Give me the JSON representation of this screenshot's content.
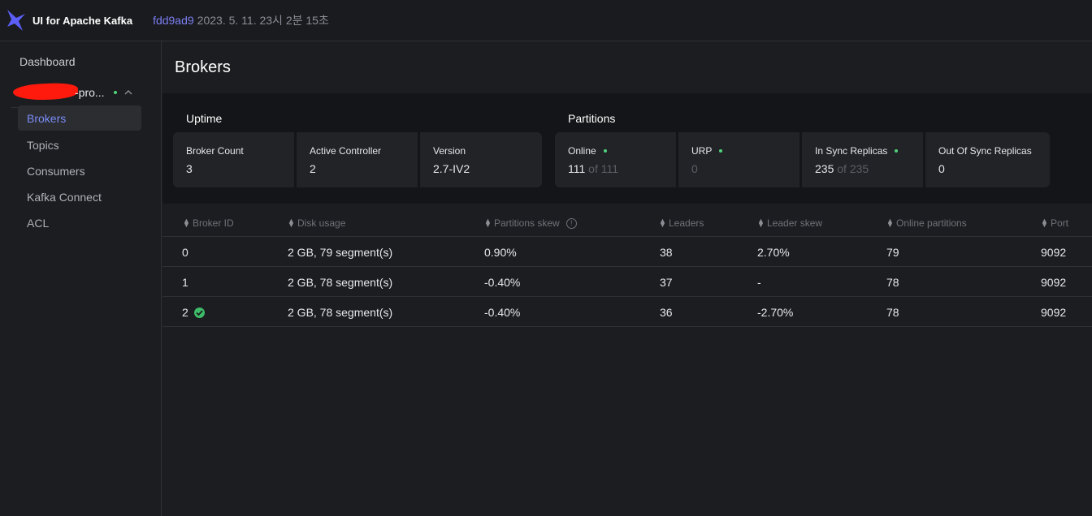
{
  "app": {
    "title": "UI for Apache Kafka",
    "commit": "fdd9ad9",
    "build_date": "2023. 5. 11. 23시 2분 15초",
    "accent_color": "#7b7ff3",
    "logo_color": "#5b5ef7"
  },
  "sidebar": {
    "dashboard": "Dashboard",
    "cluster": {
      "name_visible": "-pro...",
      "status": "online",
      "expanded": true
    },
    "items": [
      {
        "label": "Brokers",
        "active": true
      },
      {
        "label": "Topics",
        "active": false
      },
      {
        "label": "Consumers",
        "active": false
      },
      {
        "label": "Kafka Connect",
        "active": false
      },
      {
        "label": "ACL",
        "active": false
      }
    ]
  },
  "page": {
    "title": "Brokers"
  },
  "metrics": {
    "uptime": {
      "label": "Uptime",
      "cards": [
        {
          "label": "Broker Count",
          "value": "3"
        },
        {
          "label": "Active Controller",
          "value": "2"
        },
        {
          "label": "Version",
          "value": "2.7-IV2"
        }
      ]
    },
    "partitions": {
      "label": "Partitions",
      "cards": [
        {
          "label": "Online",
          "value": "111",
          "suffix": "of 111",
          "status": "green"
        },
        {
          "label": "URP",
          "value": "",
          "suffix": "0",
          "status": "green"
        },
        {
          "label": "In Sync Replicas",
          "value": "235",
          "suffix": "of 235",
          "status": "green"
        },
        {
          "label": "Out Of Sync Replicas",
          "value": "0",
          "suffix": ""
        }
      ]
    }
  },
  "table": {
    "columns": [
      "Broker ID",
      "Disk usage",
      "Partitions skew",
      "Leaders",
      "Leader skew",
      "Online partitions",
      "Port"
    ],
    "rows": [
      {
        "id": "0",
        "disk": "2 GB, 79 segment(s)",
        "partitions_skew": "0.90%",
        "leaders": "38",
        "leader_skew": "2.70%",
        "online_partitions": "79",
        "port": "9092",
        "controller": false
      },
      {
        "id": "1",
        "disk": "2 GB, 78 segment(s)",
        "partitions_skew": "-0.40%",
        "leaders": "37",
        "leader_skew": "-",
        "online_partitions": "78",
        "port": "9092",
        "controller": false
      },
      {
        "id": "2",
        "disk": "2 GB, 78 segment(s)",
        "partitions_skew": "-0.40%",
        "leaders": "36",
        "leader_skew": "-2.70%",
        "online_partitions": "78",
        "port": "9092",
        "controller": true
      }
    ]
  }
}
